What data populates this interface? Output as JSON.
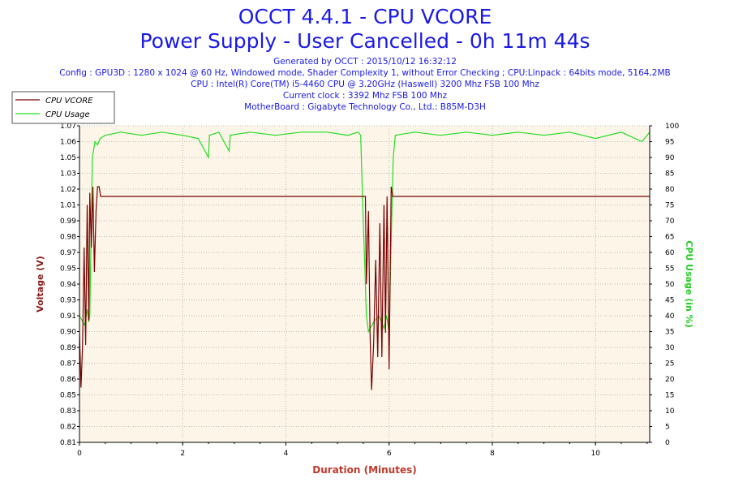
{
  "header": {
    "title": "OCCT 4.4.1 - CPU VCORE",
    "subtitle": "Power Supply - User Cancelled - 0h 11m 44s",
    "generated": "Generated by OCCT : 2015/10/12 16:32:12",
    "config": "Config : GPU3D : 1280 x 1024 @ 60 Hz, Windowed mode, Shader Complexity 1, without Error Checking ; CPU:Linpack : 64bits mode, 5164,2MB",
    "cpu": "CPU : Intel(R) Core(TM) i5-4460 CPU @ 3.20GHz (Haswell) 3200 Mhz FSB 100 Mhz",
    "clock": "Current clock : 3392 Mhz FSB 100 Mhz",
    "motherboard": "MotherBoard : Gigabyte Technology Co., Ltd.: B85M-D3H"
  },
  "colors": {
    "vcore": "#7a0000",
    "usage": "#22dd22",
    "plot_bg": "#fdf5e8",
    "title": "#1a1ae6",
    "axis_title_left": "#8b1a1a",
    "axis_title_right": "#22cc22",
    "x_title": "#c0392b"
  },
  "chart_data": {
    "type": "line",
    "title": "OCCT 4.4.1 - CPU VCORE",
    "xlabel": "Duration (Minutes)",
    "ylabel": "Voltage (V)",
    "y2label": "CPU Usage (in %)",
    "xlim": [
      0,
      11.05
    ],
    "ylim": [
      0.81,
      1.07
    ],
    "y2lim": [
      0,
      100
    ],
    "x_ticks": [
      "0",
      "2",
      "4",
      "6",
      "8",
      "10"
    ],
    "y_ticks": [
      "0.81",
      "0.82",
      "0.83",
      "0.85",
      "0.86",
      "0.87",
      "0.89",
      "0.90",
      "0.91",
      "0.93",
      "0.94",
      "0.95",
      "0.97",
      "0.98",
      "0.99",
      "1.01",
      "1.02",
      "1.03",
      "1.05",
      "1.06",
      "1.07"
    ],
    "y2_ticks": [
      "0",
      "5",
      "10",
      "15",
      "20",
      "25",
      "30",
      "35",
      "40",
      "45",
      "50",
      "55",
      "60",
      "65",
      "70",
      "75",
      "80",
      "85",
      "90",
      "95",
      "100"
    ],
    "legend": {
      "placement": "top-left",
      "entries": [
        "CPU VCORE",
        "CPU Usage"
      ]
    },
    "series": [
      {
        "name": "CPU VCORE",
        "axis": "left",
        "points": [
          [
            0,
            0.9
          ],
          [
            0.03,
            0.855
          ],
          [
            0.06,
            0.89
          ],
          [
            0.09,
            0.97
          ],
          [
            0.12,
            0.89
          ],
          [
            0.15,
            1.005
          ],
          [
            0.18,
            0.91
          ],
          [
            0.2,
            1.015
          ],
          [
            0.23,
            0.97
          ],
          [
            0.26,
            1.02
          ],
          [
            0.29,
            0.95
          ],
          [
            0.32,
            1.0
          ],
          [
            0.35,
            1.02
          ],
          [
            0.38,
            1.02
          ],
          [
            0.41,
            1.012
          ],
          [
            5.5,
            1.012
          ],
          [
            5.54,
            1.012
          ],
          [
            5.56,
            0.94
          ],
          [
            5.6,
            1.0
          ],
          [
            5.63,
            0.9
          ],
          [
            5.66,
            0.853
          ],
          [
            5.7,
            0.89
          ],
          [
            5.74,
            0.96
          ],
          [
            5.78,
            0.88
          ],
          [
            5.82,
            0.99
          ],
          [
            5.86,
            0.88
          ],
          [
            5.9,
            1.005
          ],
          [
            5.93,
            0.9
          ],
          [
            5.96,
            1.012
          ],
          [
            6.0,
            0.87
          ],
          [
            6.04,
            1.02
          ],
          [
            6.07,
            1.012
          ],
          [
            11.05,
            1.012
          ]
        ]
      },
      {
        "name": "CPU Usage",
        "axis": "right",
        "points": [
          [
            0,
            40
          ],
          [
            0.1,
            37
          ],
          [
            0.15,
            42
          ],
          [
            0.18,
            38
          ],
          [
            0.2,
            40
          ],
          [
            0.25,
            90
          ],
          [
            0.3,
            95
          ],
          [
            0.35,
            94
          ],
          [
            0.4,
            96
          ],
          [
            0.5,
            97
          ],
          [
            0.8,
            98
          ],
          [
            1.2,
            97
          ],
          [
            1.6,
            98
          ],
          [
            2.0,
            97
          ],
          [
            2.3,
            96
          ],
          [
            2.5,
            90
          ],
          [
            2.52,
            97
          ],
          [
            2.7,
            98
          ],
          [
            2.9,
            92
          ],
          [
            2.92,
            97
          ],
          [
            3.3,
            98
          ],
          [
            3.8,
            97
          ],
          [
            4.3,
            98
          ],
          [
            4.8,
            98
          ],
          [
            5.2,
            97
          ],
          [
            5.4,
            98
          ],
          [
            5.45,
            97
          ],
          [
            5.48,
            80
          ],
          [
            5.52,
            60
          ],
          [
            5.56,
            40
          ],
          [
            5.6,
            35
          ],
          [
            5.7,
            38
          ],
          [
            5.8,
            40
          ],
          [
            5.9,
            36
          ],
          [
            5.95,
            40
          ],
          [
            6.0,
            35
          ],
          [
            6.05,
            70
          ],
          [
            6.08,
            90
          ],
          [
            6.12,
            97
          ],
          [
            6.5,
            98
          ],
          [
            7.0,
            97
          ],
          [
            7.5,
            98
          ],
          [
            8.0,
            97
          ],
          [
            8.5,
            98
          ],
          [
            9.0,
            97
          ],
          [
            9.5,
            98
          ],
          [
            10.0,
            96
          ],
          [
            10.5,
            98
          ],
          [
            10.9,
            95
          ],
          [
            11.05,
            98
          ]
        ]
      }
    ]
  }
}
